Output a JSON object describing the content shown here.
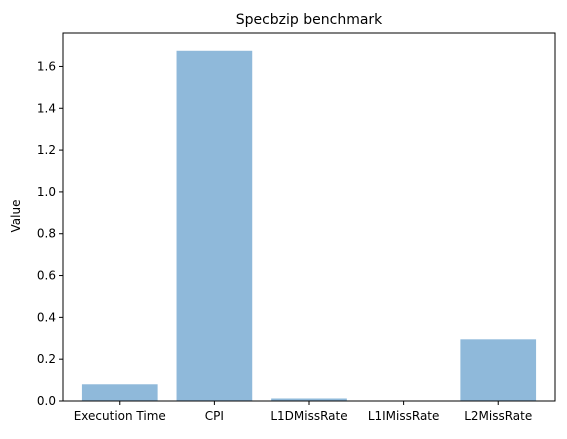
{
  "chart_data": {
    "type": "bar",
    "title": "Specbzip benchmark",
    "xlabel": "",
    "ylabel": "Value",
    "categories": [
      "Execution Time",
      "CPI",
      "L1DMissRate",
      "L1IMissRate",
      "L2MissRate"
    ],
    "values": [
      0.08,
      1.675,
      0.012,
      0.0002,
      0.295
    ],
    "ylim": [
      0,
      1.76
    ],
    "yticks": [
      0.0,
      0.2,
      0.4,
      0.6,
      0.8,
      1.0,
      1.2,
      1.4,
      1.6
    ],
    "ytick_labels": [
      "0.0",
      "0.2",
      "0.4",
      "0.6",
      "0.8",
      "1.0",
      "1.2",
      "1.4",
      "1.6"
    ],
    "grid": false,
    "bar_color": "#8fb9da",
    "legend": "none"
  }
}
